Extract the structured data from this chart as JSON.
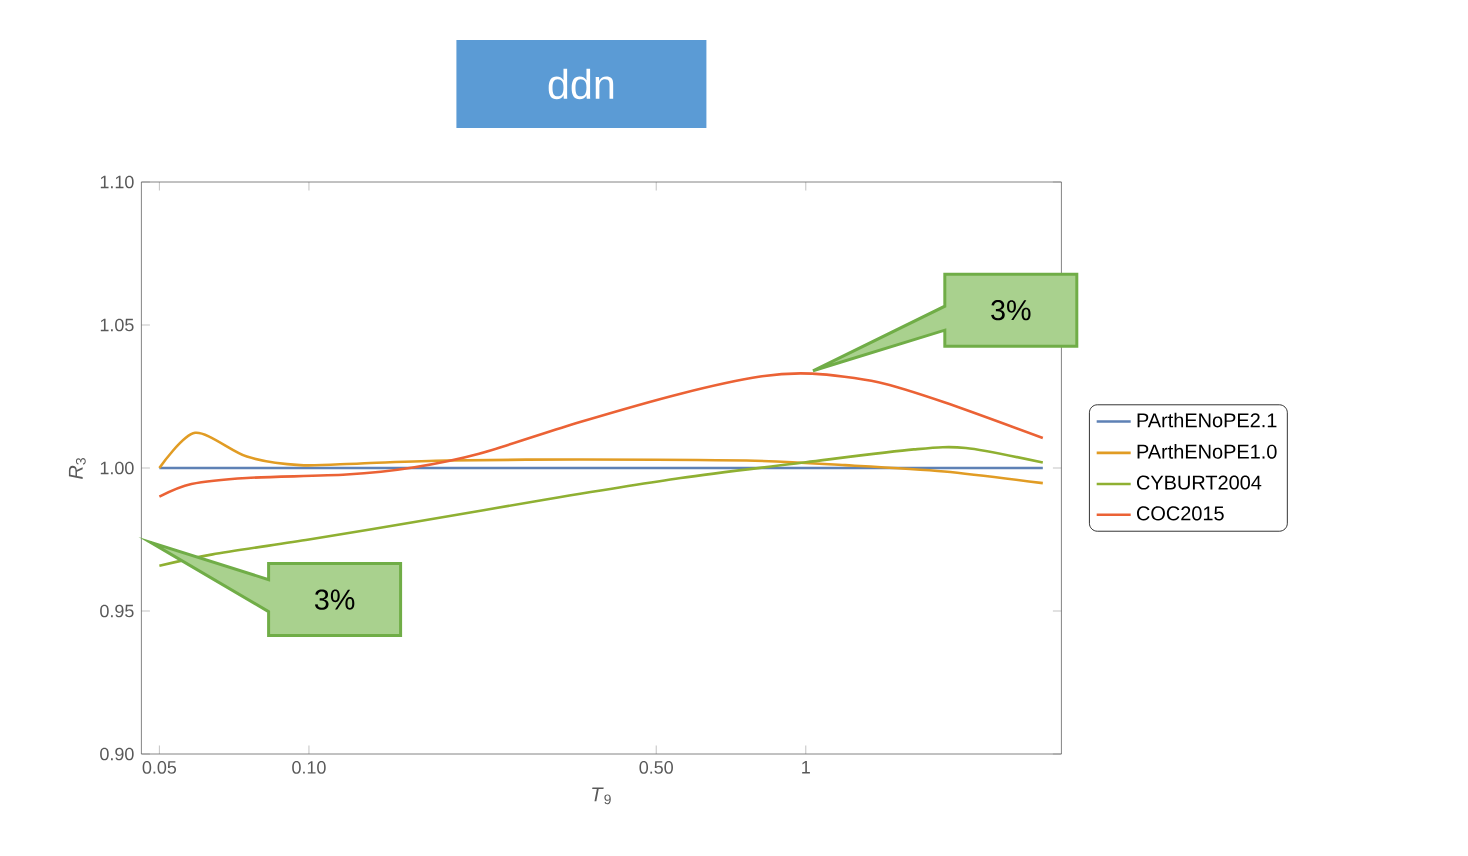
{
  "chart_data": {
    "type": "line",
    "title": "ddn",
    "xlabel": "*T*$_{9}$",
    "ylabel": "*R*$_{3}$",
    "log": "x",
    "xlim": [
      0.046,
      3.27
    ],
    "ylim": [
      0.9,
      1.1
    ],
    "xticks": [
      {
        "value": 0.05,
        "label": "0.05"
      },
      {
        "value": 0.1,
        "label": "0.10"
      },
      {
        "value": 0.5,
        "label": "0.50"
      },
      1
    ],
    "yticks": [
      {
        "value": 0.9,
        "label": "0.90"
      },
      {
        "value": 0.95,
        "label": "0.95"
      },
      {
        "value": 1.0,
        "label": "1.00"
      },
      {
        "value": 1.05,
        "label": "1.05"
      },
      {
        "value": 1.1,
        "label": "1.10"
      }
    ],
    "legend": "right",
    "series": [
      {
        "name": "PArthENoPE2.1",
        "color": "#5e81b5",
        "x": [
          0.05,
          3.0
        ],
        "values": [
          1.0,
          1.0
        ]
      },
      {
        "name": "PArthENoPE1.0",
        "color": "#e19c24",
        "x": [
          0.05,
          0.059,
          0.075,
          0.096,
          0.127,
          0.19,
          0.35,
          0.76,
          1.2,
          1.9,
          3.0
        ],
        "values": [
          1.0,
          1.0123,
          1.004,
          1.001,
          1.0016,
          1.0026,
          1.003,
          1.0026,
          1.001,
          0.9988,
          0.9947
        ]
      },
      {
        "name": "CYBURT2004",
        "color": "#8fb032",
        "x": [
          0.05,
          0.064,
          0.1,
          0.162,
          0.3,
          0.56,
          1.0,
          1.65,
          2.1,
          3.0
        ],
        "values": [
          0.9658,
          0.9698,
          0.975,
          0.981,
          0.989,
          0.9965,
          1.002,
          1.0065,
          1.007,
          1.0019
        ]
      },
      {
        "name": "COC2015",
        "color": "#eb6235",
        "x": [
          0.05,
          0.058,
          0.075,
          0.119,
          0.162,
          0.22,
          0.35,
          0.56,
          0.81,
          1.03,
          1.4,
          1.9,
          3.0
        ],
        "values": [
          0.99,
          0.9944,
          0.9965,
          0.9977,
          1.0002,
          1.005,
          1.016,
          1.026,
          1.032,
          1.033,
          1.03,
          1.023,
          1.0105
        ]
      }
    ],
    "annotations": [
      "3%",
      "3%"
    ]
  }
}
